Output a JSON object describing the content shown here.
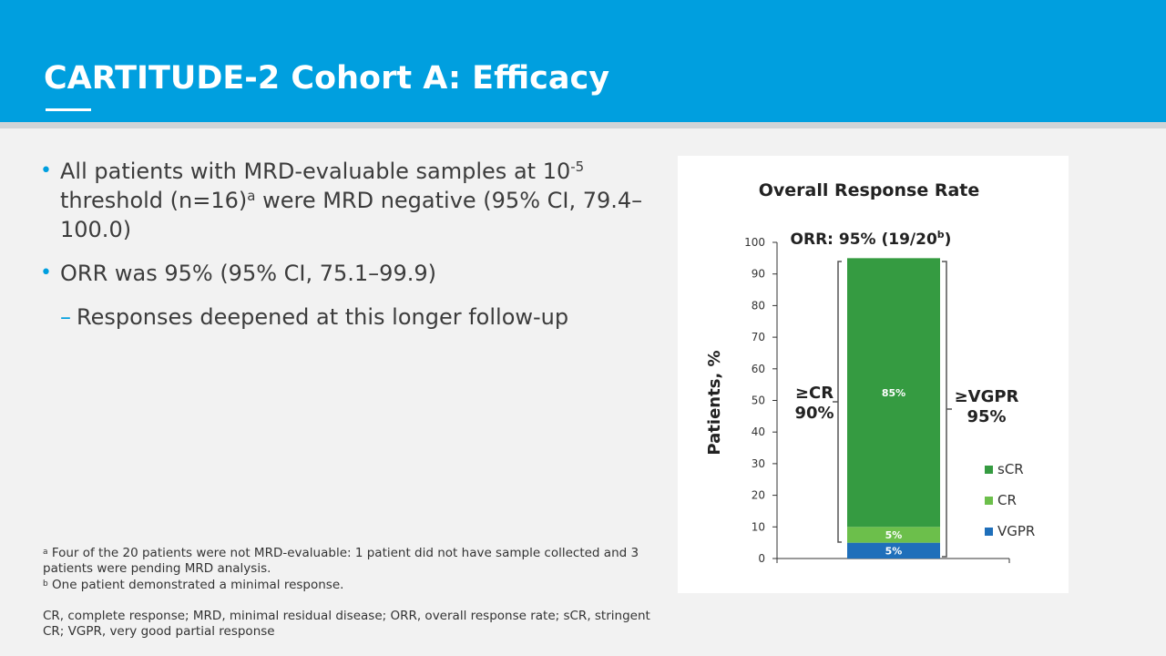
{
  "slide": {
    "title": "CARTITUDE-2 Cohort A: Efficacy",
    "bullets": {
      "b1_pre": "All patients with MRD-evaluable samples at 10",
      "b1_exp": "-5",
      "b1_mid": " threshold (n=16)",
      "b1_sup": "a",
      "b1_post": " were MRD negative (95% CI, 79.4–100.0)",
      "b2": "ORR was 95% (95% CI, 75.1–99.9)",
      "sub1": "Responses deepened at this longer follow-up"
    },
    "footnotes": {
      "a_marker": "a",
      "a_text": "Four of the 20 patients were not MRD-evaluable: 1 patient did not have sample collected and 3 patients were pending MRD analysis.",
      "b_marker": "b",
      "b_text": "One patient demonstrated a minimal response.",
      "abbreviations": "CR, complete response; MRD, minimal residual disease; ORR, overall response rate; sCR, stringent CR; VGPR, very good partial response"
    }
  },
  "chart_data": {
    "type": "bar",
    "stacked": true,
    "title": "Overall Response Rate",
    "ylabel": "Patients, %",
    "ylim": [
      0,
      100
    ],
    "yticks": [
      0,
      10,
      20,
      30,
      40,
      50,
      60,
      70,
      80,
      90,
      100
    ],
    "header_label_pre": "ORR: 95% (19/20",
    "header_label_sup": "b",
    "header_label_post": ")",
    "series": [
      {
        "name": "VGPR",
        "value": 5,
        "label": "5%",
        "color": "#1f6fba"
      },
      {
        "name": "CR",
        "value": 5,
        "label": "5%",
        "color": "#6cbf4b"
      },
      {
        "name": "sCR",
        "value": 85,
        "label": "85%",
        "color": "#359b41"
      }
    ],
    "legend_order": [
      "sCR",
      "CR",
      "VGPR"
    ],
    "brackets": {
      "left": {
        "line1": "≥CR",
        "line2": "90%"
      },
      "right": {
        "line1": "≥VGPR",
        "line2": "95%"
      }
    },
    "legend_placement": "bottom-right"
  }
}
